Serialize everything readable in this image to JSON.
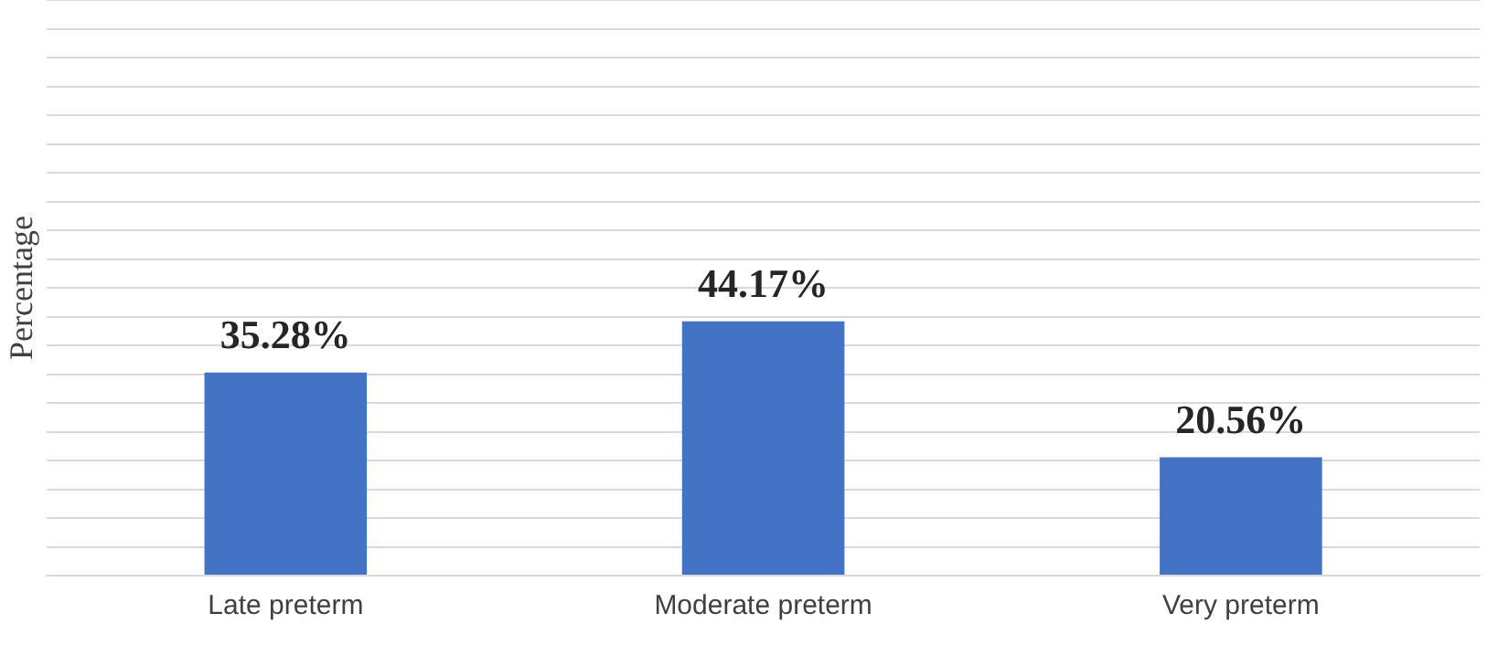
{
  "chart_data": {
    "type": "bar",
    "ylabel": "Percentage",
    "categories": [
      "Late preterm",
      "Moderate preterm",
      "Very preterm"
    ],
    "values": [
      35.28,
      44.17,
      20.56
    ],
    "color": "#4472c4",
    "value_labels": [
      "35.28%",
      "44.17%",
      "20.56%"
    ],
    "ylim": [
      0,
      100
    ],
    "yticks": [
      {
        "value": 0,
        "label": null
      },
      {
        "value": 5,
        "label": null
      },
      {
        "value": 10,
        "label": null
      },
      {
        "value": 15,
        "label": null
      },
      {
        "value": 20,
        "label": null
      },
      {
        "value": 25,
        "label": null
      },
      {
        "value": 30,
        "label": null
      },
      {
        "value": 35,
        "label": null
      },
      {
        "value": 40,
        "label": null
      },
      {
        "value": 45,
        "label": null
      },
      {
        "value": 50,
        "label": null
      },
      {
        "value": 55,
        "label": null
      },
      {
        "value": 60,
        "label": null
      },
      {
        "value": 65,
        "label": null
      },
      {
        "value": 70,
        "label": null
      },
      {
        "value": 75,
        "label": null
      },
      {
        "value": 80,
        "label": null
      },
      {
        "value": 85,
        "label": null
      },
      {
        "value": 90,
        "label": null
      },
      {
        "value": 95,
        "label": null
      },
      {
        "value": 100,
        "label": null
      }
    ],
    "tick_labels": "x",
    "grid": "y",
    "legend": false
  }
}
